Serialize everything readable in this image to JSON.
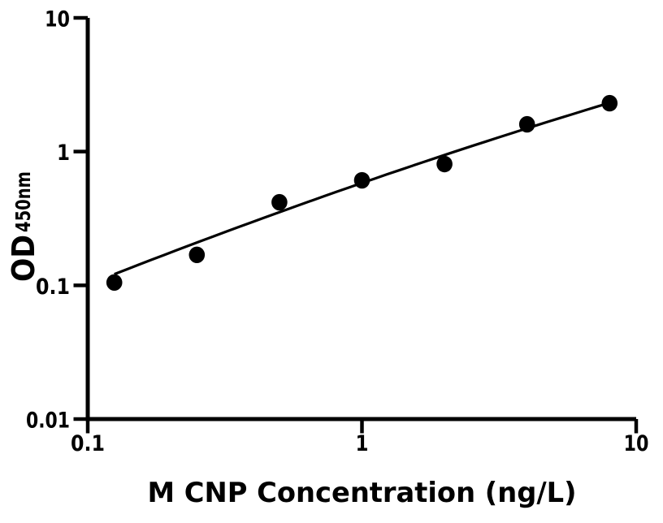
{
  "figure": {
    "background": "#ffffff",
    "foreground": "#000000"
  },
  "chart_data": {
    "type": "scatter",
    "title": "",
    "xlabel": "M CNP Concentration (ng/L)",
    "ylabel_main": "OD",
    "ylabel_subscript": "450nm",
    "xscale": "log",
    "yscale": "log",
    "xlim": [
      0.1,
      10
    ],
    "ylim": [
      0.01,
      10
    ],
    "x_tick_labels": [
      "0.1",
      "1",
      "10"
    ],
    "x_ticks": [
      0.1,
      1,
      10
    ],
    "y_tick_labels": [
      "0.01",
      "0.1",
      "1",
      "10"
    ],
    "y_ticks": [
      0.01,
      0.1,
      1,
      10
    ],
    "grid": false,
    "legend": "none",
    "series": [
      {
        "name": "standard-curve-points",
        "x": [
          0.125,
          0.25,
          0.5,
          1,
          2,
          4,
          8
        ],
        "y": [
          0.105,
          0.169,
          0.418,
          0.61,
          0.807,
          1.6,
          2.3
        ],
        "marker": "filled-circle",
        "marker_color": "#000000"
      }
    ],
    "fit_curve": {
      "name": "fitted-standard-curve",
      "model": "log10(OD) = a + b*log10(conc) + c*log10(conc)^2",
      "a": -0.2348,
      "b": 0.7094,
      "c": -0.0504,
      "x_range": [
        0.125,
        8
      ],
      "line_color": "#000000"
    }
  }
}
